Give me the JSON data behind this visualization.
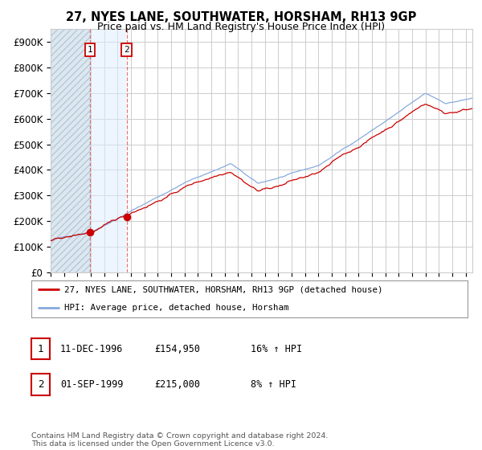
{
  "title": "27, NYES LANE, SOUTHWATER, HORSHAM, RH13 9GP",
  "subtitle": "Price paid vs. HM Land Registry's House Price Index (HPI)",
  "ylim": [
    0,
    950000
  ],
  "yticks": [
    0,
    100000,
    200000,
    300000,
    400000,
    500000,
    600000,
    700000,
    800000,
    900000
  ],
  "ytick_labels": [
    "£0",
    "£100K",
    "£200K",
    "£300K",
    "£400K",
    "£500K",
    "£600K",
    "£700K",
    "£800K",
    "£900K"
  ],
  "xlim_start": 1994.0,
  "xlim_end": 2025.5,
  "sale1_year": 1996.95,
  "sale1_price": 154950,
  "sale1_label": "1",
  "sale1_date": "11-DEC-1996",
  "sale1_price_str": "£154,950",
  "sale1_hpi": "16% ↑ HPI",
  "sale2_year": 1999.67,
  "sale2_price": 215000,
  "sale2_label": "2",
  "sale2_date": "01-SEP-1999",
  "sale2_price_str": "£215,000",
  "sale2_hpi": "8% ↑ HPI",
  "legend_property": "27, NYES LANE, SOUTHWATER, HORSHAM, RH13 9GP (detached house)",
  "legend_hpi": "HPI: Average price, detached house, Horsham",
  "footer": "Contains HM Land Registry data © Crown copyright and database right 2024.\nThis data is licensed under the Open Government Licence v3.0.",
  "property_color": "#cc0000",
  "hpi_color": "#88aadd",
  "bg_color": "#ffffff",
  "grid_color": "#cccccc",
  "hatch_facecolor": "#dce8f0"
}
